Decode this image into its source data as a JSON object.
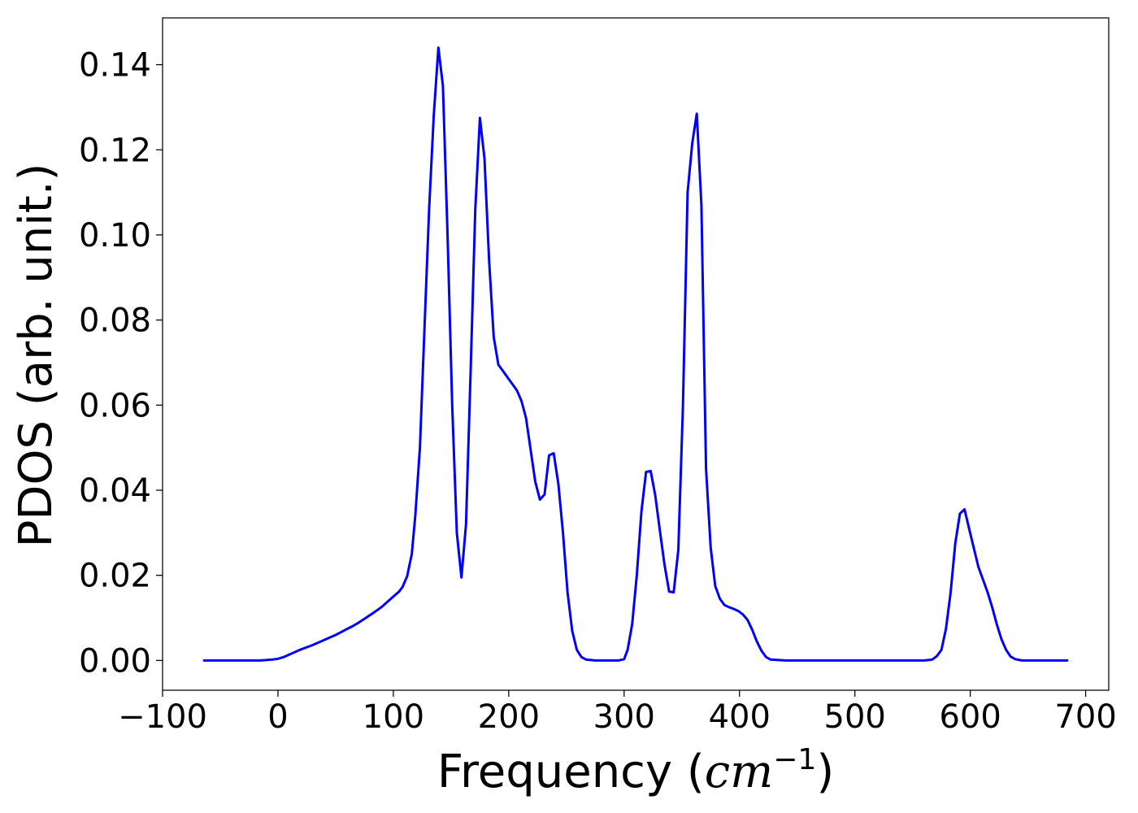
{
  "chart_data": {
    "type": "line",
    "title": "",
    "xlabel_prefix": "Frequency (",
    "xlabel_math": "cm",
    "xlabel_exp": "−1",
    "xlabel_suffix": ")",
    "ylabel": "PDOS (arb. unit.)",
    "xlim": [
      -100,
      720
    ],
    "ylim": [
      -0.007,
      0.151
    ],
    "grid": false,
    "legend": "none",
    "xticks": [
      -100,
      0,
      100,
      200,
      300,
      400,
      500,
      600,
      700
    ],
    "xtick_labels": [
      "−100",
      "0",
      "100",
      "200",
      "300",
      "400",
      "500",
      "600",
      "700"
    ],
    "yticks": [
      0.0,
      0.02,
      0.04,
      0.06,
      0.08,
      0.1,
      0.12,
      0.14
    ],
    "ytick_labels": [
      "0.00",
      "0.02",
      "0.04",
      "0.06",
      "0.08",
      "0.10",
      "0.12",
      "0.14"
    ],
    "series": [
      {
        "color": "#0000ff",
        "x": [
          -64,
          -50,
          -30,
          -15,
          -5,
          0,
          5,
          10,
          15,
          20,
          25,
          30,
          35,
          40,
          45,
          50,
          55,
          60,
          65,
          70,
          75,
          80,
          85,
          90,
          95,
          100,
          105,
          108,
          112,
          116,
          119,
          123,
          127,
          131,
          135,
          139,
          143,
          147,
          151,
          155,
          159,
          163,
          167,
          171,
          175,
          179,
          183,
          187,
          191,
          195,
          199,
          203,
          207,
          211,
          215,
          219,
          223,
          227,
          231,
          235,
          239,
          243,
          247,
          251,
          255,
          259,
          263,
          267,
          275,
          285,
          295,
          300,
          303,
          307,
          311,
          315,
          319,
          323,
          327,
          331,
          335,
          339,
          343,
          347,
          351,
          355,
          359,
          363,
          367,
          371,
          375,
          379,
          383,
          387,
          391,
          395,
          399,
          403,
          407,
          411,
          415,
          419,
          423,
          427,
          440,
          480,
          520,
          560,
          567,
          571,
          575,
          579,
          583,
          587,
          591,
          595,
          599,
          603,
          607,
          611,
          615,
          619,
          623,
          627,
          631,
          635,
          639,
          645,
          660,
          684
        ],
        "y": [
          0,
          0,
          0,
          0,
          0.0002,
          0.0004,
          0.0008,
          0.0014,
          0.002,
          0.0026,
          0.0031,
          0.0036,
          0.0042,
          0.0048,
          0.0054,
          0.006,
          0.0067,
          0.0074,
          0.0081,
          0.0089,
          0.0098,
          0.0107,
          0.0116,
          0.0126,
          0.0138,
          0.015,
          0.0162,
          0.0173,
          0.0198,
          0.025,
          0.034,
          0.05,
          0.078,
          0.106,
          0.128,
          0.144,
          0.135,
          0.1,
          0.06,
          0.03,
          0.0195,
          0.032,
          0.068,
          0.106,
          0.1275,
          0.118,
          0.094,
          0.076,
          0.0695,
          0.068,
          0.0665,
          0.065,
          0.0635,
          0.061,
          0.057,
          0.0495,
          0.042,
          0.0378,
          0.039,
          0.0482,
          0.0487,
          0.0415,
          0.03,
          0.016,
          0.007,
          0.0025,
          0.0008,
          0.0002,
          0,
          0,
          0,
          0.0003,
          0.0025,
          0.0085,
          0.02,
          0.035,
          0.0443,
          0.0445,
          0.0388,
          0.0305,
          0.0225,
          0.0162,
          0.016,
          0.026,
          0.06,
          0.11,
          0.1215,
          0.1285,
          0.107,
          0.045,
          0.0265,
          0.0175,
          0.0145,
          0.013,
          0.0125,
          0.0121,
          0.0116,
          0.0108,
          0.0095,
          0.0072,
          0.0045,
          0.0023,
          0.0008,
          0.0002,
          0,
          0,
          0,
          0,
          0.0002,
          0.001,
          0.0025,
          0.0075,
          0.016,
          0.0275,
          0.0345,
          0.0355,
          0.031,
          0.0265,
          0.022,
          0.019,
          0.016,
          0.0125,
          0.0085,
          0.005,
          0.0025,
          0.0009,
          0.0003,
          0,
          0,
          0
        ]
      }
    ]
  }
}
